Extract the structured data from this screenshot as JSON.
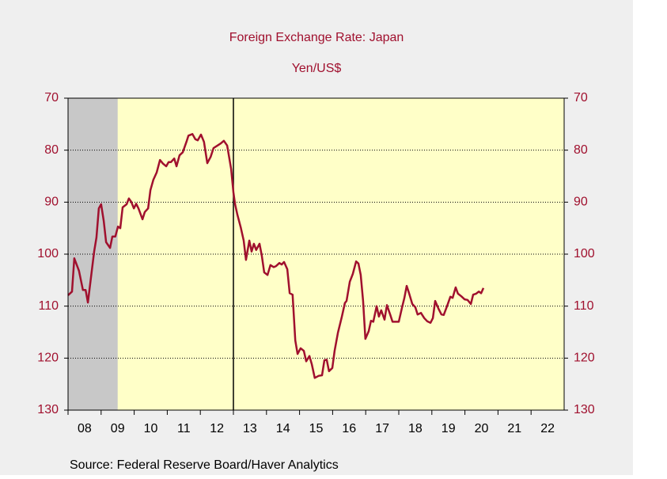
{
  "chart_data": {
    "type": "line",
    "title": "Foreign Exchange Rate: Japan",
    "subtitle": "Yen/US$",
    "source": "Source:  Federal Reserve Board/Haver Analytics",
    "x": [
      2008.0,
      2008.12,
      2008.19,
      2008.33,
      2008.45,
      2008.53,
      2008.6,
      2008.69,
      2008.79,
      2008.86,
      2008.93,
      2009.0,
      2009.08,
      2009.15,
      2009.27,
      2009.34,
      2009.43,
      2009.51,
      2009.58,
      2009.65,
      2009.77,
      2009.84,
      2009.91,
      2009.99,
      2010.06,
      2010.13,
      2010.25,
      2010.32,
      2010.42,
      2010.49,
      2010.58,
      2010.68,
      2010.78,
      2010.87,
      2010.97,
      2011.04,
      2011.11,
      2011.21,
      2011.28,
      2011.37,
      2011.47,
      2011.59,
      2011.64,
      2011.76,
      2011.85,
      2011.92,
      2012.02,
      2012.11,
      2012.21,
      2012.31,
      2012.4,
      2012.52,
      2012.62,
      2012.71,
      2012.81,
      2012.93,
      2013.0,
      2013.05,
      2013.12,
      2013.22,
      2013.31,
      2013.38,
      2013.48,
      2013.55,
      2013.62,
      2013.69,
      2013.79,
      2013.86,
      2013.93,
      2014.03,
      2014.12,
      2014.22,
      2014.29,
      2014.39,
      2014.46,
      2014.53,
      2014.63,
      2014.7,
      2014.79,
      2014.87,
      2014.94,
      2015.03,
      2015.13,
      2015.2,
      2015.3,
      2015.37,
      2015.46,
      2015.58,
      2015.68,
      2015.75,
      2015.82,
      2015.89,
      2015.99,
      2016.06,
      2016.16,
      2016.28,
      2016.37,
      2016.42,
      2016.52,
      2016.61,
      2016.71,
      2016.78,
      2016.85,
      2016.92,
      2016.99,
      2017.09,
      2017.16,
      2017.23,
      2017.33,
      2017.4,
      2017.47,
      2017.57,
      2017.64,
      2017.74,
      2017.81,
      2017.9,
      2018.0,
      2018.1,
      2018.17,
      2018.24,
      2018.31,
      2018.41,
      2018.5,
      2018.57,
      2018.67,
      2018.77,
      2018.86,
      2018.96,
      2019.03,
      2019.1,
      2019.2,
      2019.29,
      2019.36,
      2019.46,
      2019.56,
      2019.63,
      2019.72,
      2019.79,
      2019.89,
      2019.99,
      2020.08,
      2020.18,
      2020.25,
      2020.34,
      2020.42,
      2020.49,
      2020.56
    ],
    "series": [
      {
        "name": "Yen/US$",
        "color": "#a0102e",
        "values": [
          107.9,
          107.2,
          100.8,
          103.2,
          106.9,
          106.9,
          109.3,
          104.7,
          99.5,
          96.8,
          91.2,
          90.4,
          93.6,
          97.7,
          98.8,
          96.6,
          96.6,
          94.7,
          95.0,
          91.0,
          90.4,
          89.3,
          89.9,
          91.2,
          90.3,
          91.2,
          93.3,
          91.9,
          91.2,
          87.7,
          85.7,
          84.3,
          81.9,
          82.6,
          83.1,
          82.3,
          82.3,
          81.6,
          83.1,
          81.0,
          80.4,
          78.2,
          77.2,
          76.9,
          77.9,
          78.1,
          77.0,
          78.4,
          82.5,
          81.3,
          79.6,
          79.1,
          78.7,
          78.2,
          79.1,
          83.6,
          88.1,
          90.4,
          92.4,
          94.8,
          97.4,
          101.1,
          97.4,
          99.5,
          98.0,
          99.2,
          98.0,
          100.3,
          103.5,
          104.0,
          102.1,
          102.5,
          102.3,
          101.7,
          102.0,
          101.5,
          102.9,
          107.5,
          107.8,
          116.6,
          119.2,
          118.1,
          118.6,
          120.6,
          119.6,
          121.2,
          123.8,
          123.4,
          123.3,
          120.4,
          120.3,
          122.5,
          121.9,
          118.6,
          115.1,
          112.0,
          109.4,
          109.0,
          105.3,
          103.8,
          101.4,
          101.8,
          104.0,
          109.0,
          116.3,
          114.8,
          112.8,
          113.0,
          110.0,
          112.0,
          110.8,
          112.6,
          109.8,
          111.6,
          113.0,
          113.0,
          113.0,
          110.2,
          108.4,
          106.1,
          107.5,
          109.6,
          110.2,
          111.6,
          111.3,
          112.3,
          112.9,
          113.2,
          112.3,
          109.0,
          110.5,
          111.6,
          111.7,
          110.0,
          108.2,
          108.4,
          106.4,
          107.6,
          108.1,
          108.7,
          108.8,
          109.6,
          107.8,
          107.6,
          107.2,
          107.5,
          106.5
        ]
      }
    ],
    "xlim": [
      2008,
      2023
    ],
    "xticks": [
      {
        "value": 2008,
        "label": "08"
      },
      {
        "value": 2009,
        "label": "09"
      },
      {
        "value": 2010,
        "label": "10"
      },
      {
        "value": 2011,
        "label": "11"
      },
      {
        "value": 2012,
        "label": "12"
      },
      {
        "value": 2013,
        "label": "13"
      },
      {
        "value": 2014,
        "label": "14"
      },
      {
        "value": 2015,
        "label": "15"
      },
      {
        "value": 2016,
        "label": "16"
      },
      {
        "value": 2017,
        "label": "17"
      },
      {
        "value": 2018,
        "label": "18"
      },
      {
        "value": 2019,
        "label": "19"
      },
      {
        "value": 2020,
        "label": "20"
      },
      {
        "value": 2021,
        "label": "21"
      },
      {
        "value": 2022,
        "label": "22"
      }
    ],
    "ylim": [
      130,
      70
    ],
    "yticks": [
      70,
      80,
      90,
      100,
      110,
      120,
      130
    ],
    "y2lim": [
      130,
      70
    ],
    "y2ticks": [
      70,
      80,
      90,
      100,
      110,
      120,
      130
    ],
    "grid": true,
    "recession": [
      2008,
      2009.5
    ],
    "vline": 2013
  }
}
